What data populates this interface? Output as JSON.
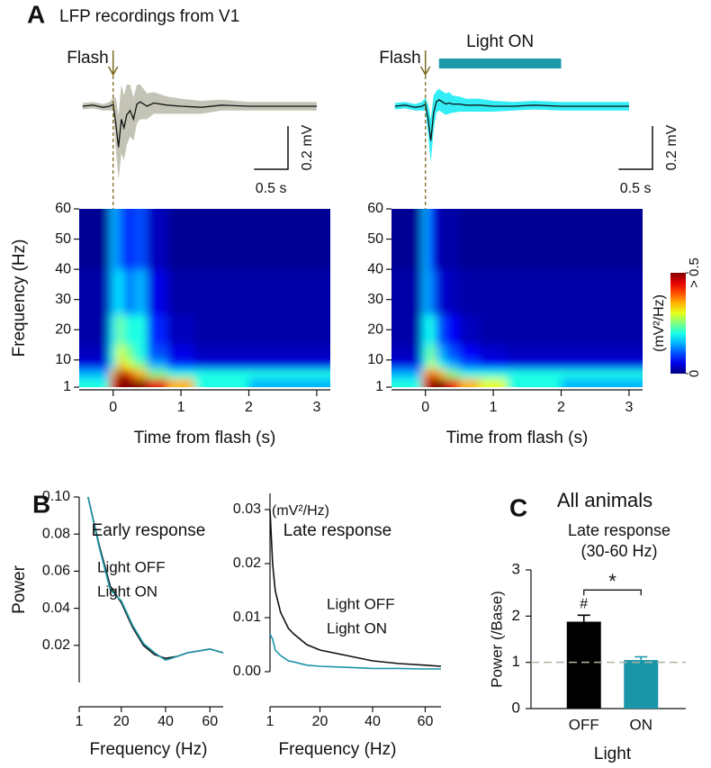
{
  "panel_labels": [
    "A",
    "B",
    "C"
  ],
  "title": "LFP recordings from V1",
  "chart_data": [
    {
      "type": "trace",
      "flash_label": "Flash",
      "flash_x": 0,
      "xlim": [
        -0.5,
        3.2
      ],
      "color": "#111111",
      "band_color": "#c4c4b6",
      "x": [
        -0.45,
        -0.3,
        -0.15,
        -0.05,
        0,
        0.04,
        0.08,
        0.12,
        0.16,
        0.2,
        0.25,
        0.3,
        0.35,
        0.4,
        0.5,
        0.6,
        0.8,
        1.0,
        1.3,
        1.6,
        2.0,
        2.5,
        3.0
      ],
      "mean": [
        0,
        0.005,
        -0.005,
        0,
        0.01,
        -0.08,
        -0.19,
        -0.06,
        -0.1,
        -0.04,
        -0.02,
        -0.06,
        0.01,
        0.02,
        0,
        0.015,
        0.005,
        0,
        -0.005,
        0.005,
        0,
        0,
        0
      ],
      "sd": [
        0.015,
        0.015,
        0.015,
        0.02,
        0.03,
        0.12,
        0.15,
        0.16,
        0.15,
        0.14,
        0.12,
        0.1,
        0.09,
        0.08,
        0.06,
        0.05,
        0.04,
        0.035,
        0.03,
        0.025,
        0.02,
        0.02,
        0.02
      ],
      "scalebar": {
        "x": 0.5,
        "y": 0.2,
        "x_label": "0.5 s",
        "y_label": "0.2 mV"
      }
    },
    {
      "type": "trace",
      "flash_label": "Flash",
      "flash_x": 0,
      "xlim": [
        -0.5,
        3.2
      ],
      "color": "#111111",
      "band_color": "#33eef6",
      "light_on": {
        "label": "Light ON",
        "start": 0.2,
        "end": 2.0,
        "color": "#1a9aaa"
      },
      "x": [
        -0.45,
        -0.3,
        -0.15,
        -0.05,
        0,
        0.04,
        0.08,
        0.12,
        0.16,
        0.2,
        0.25,
        0.3,
        0.35,
        0.4,
        0.5,
        0.6,
        0.8,
        1.0,
        1.3,
        1.6,
        2.0,
        2.5,
        3.0
      ],
      "mean": [
        0,
        0.005,
        -0.005,
        0,
        0.01,
        -0.06,
        -0.16,
        -0.03,
        0.02,
        0.03,
        0.02,
        0.01,
        0.015,
        0.01,
        0.01,
        0.005,
        0.005,
        0,
        0,
        0.005,
        0,
        0,
        0
      ],
      "sd": [
        0.015,
        0.015,
        0.015,
        0.02,
        0.03,
        0.07,
        0.1,
        0.08,
        0.05,
        0.05,
        0.05,
        0.05,
        0.05,
        0.04,
        0.035,
        0.03,
        0.03,
        0.025,
        0.02,
        0.02,
        0.02,
        0.02,
        0.02
      ],
      "scalebar": {
        "x": 0.5,
        "y": 0.2,
        "x_label": "0.5 s",
        "y_label": "0.2 mV"
      }
    },
    {
      "type": "heatmap",
      "ylabel": "Frequency (Hz)",
      "xlabel": "Time from flash (s)",
      "xlim": [
        -0.5,
        3.2
      ],
      "ylim": [
        1,
        60
      ],
      "xticks": [
        0,
        1,
        2,
        3
      ],
      "yticks": [
        1,
        10,
        20,
        30,
        40,
        50,
        60
      ],
      "zlim": [
        0,
        0.5
      ],
      "xbins": [
        -0.5,
        -0.05,
        0.05,
        0.15,
        0.3,
        0.5,
        0.8,
        1.2,
        2,
        3.2
      ],
      "ybins": [
        1,
        4,
        7,
        10,
        15,
        25,
        40,
        60
      ],
      "z": [
        [
          0.2,
          0.45,
          0.6,
          0.6,
          0.55,
          0.45,
          0.35,
          0.2,
          0.15
        ],
        [
          0.15,
          0.35,
          0.5,
          0.45,
          0.35,
          0.25,
          0.2,
          0.2,
          0.2
        ],
        [
          0.05,
          0.2,
          0.35,
          0.3,
          0.25,
          0.15,
          0.08,
          0.05,
          0.05
        ],
        [
          0.03,
          0.2,
          0.3,
          0.25,
          0.2,
          0.1,
          0.05,
          0.03,
          0.03
        ],
        [
          0.02,
          0.18,
          0.25,
          0.2,
          0.2,
          0.08,
          0.03,
          0.02,
          0.02
        ],
        [
          0.02,
          0.15,
          0.18,
          0.12,
          0.15,
          0.05,
          0.02,
          0.02,
          0.02
        ],
        [
          0.01,
          0.15,
          0.12,
          0.08,
          0.1,
          0.03,
          0.01,
          0.01,
          0.01
        ]
      ]
    },
    {
      "type": "heatmap",
      "xlabel": "Time from flash (s)",
      "xlim": [
        -0.5,
        3.2
      ],
      "ylim": [
        1,
        60
      ],
      "xticks": [
        0,
        1,
        2,
        3
      ],
      "yticks": [
        1,
        10,
        20,
        30,
        40,
        50,
        60
      ],
      "zlim": [
        0,
        0.5
      ],
      "xbins": [
        -0.5,
        -0.05,
        0.05,
        0.15,
        0.3,
        0.5,
        0.8,
        1.2,
        2,
        3.2
      ],
      "ybins": [
        1,
        4,
        7,
        10,
        15,
        25,
        40,
        60
      ],
      "z": [
        [
          0.2,
          0.45,
          0.6,
          0.55,
          0.45,
          0.35,
          0.3,
          0.2,
          0.15
        ],
        [
          0.15,
          0.35,
          0.45,
          0.35,
          0.25,
          0.2,
          0.2,
          0.2,
          0.2
        ],
        [
          0.05,
          0.2,
          0.3,
          0.2,
          0.15,
          0.1,
          0.06,
          0.05,
          0.05
        ],
        [
          0.03,
          0.2,
          0.25,
          0.15,
          0.1,
          0.06,
          0.04,
          0.03,
          0.03
        ],
        [
          0.02,
          0.18,
          0.2,
          0.1,
          0.06,
          0.03,
          0.02,
          0.02,
          0.02
        ],
        [
          0.02,
          0.15,
          0.12,
          0.04,
          0.03,
          0.02,
          0.02,
          0.02,
          0.02
        ],
        [
          0.01,
          0.15,
          0.08,
          0.02,
          0.02,
          0.01,
          0.01,
          0.01,
          0.01
        ]
      ],
      "colorbar": {
        "label": "(mV²/Hz)",
        "ticks": [
          {
            "value": 0.5,
            "label": "> 0.5"
          },
          0
        ]
      }
    },
    {
      "type": "line",
      "title": "Early response",
      "ylabel": "Power",
      "xlabel": "Frequency (Hz)",
      "xlim": [
        1,
        66
      ],
      "ylim": [
        0,
        0.1
      ],
      "xticks": [
        1,
        20,
        40,
        60
      ],
      "yticks": [
        0.02,
        0.04,
        0.06,
        0.08,
        {
          "value": 0.1,
          "label": "0.10"
        }
      ],
      "x": [
        5,
        10,
        15,
        20,
        25,
        30,
        35,
        40,
        45,
        50,
        55,
        60,
        66
      ],
      "series": [
        {
          "name": "Light OFF",
          "color": "#111111",
          "values": [
            0.1,
            0.074,
            0.052,
            0.043,
            0.03,
            0.02,
            0.015,
            0.013,
            0.014,
            0.016,
            0.017,
            0.018,
            0.016
          ]
        },
        {
          "name": "Light ON",
          "color": "#1b95a8",
          "values": [
            0.1,
            0.073,
            0.05,
            0.044,
            0.031,
            0.021,
            0.016,
            0.012,
            0.014,
            0.016,
            0.017,
            0.018,
            0.016
          ]
        }
      ]
    },
    {
      "type": "line",
      "title": "Late response",
      "unit_label": "(mV²/Hz)",
      "xlabel": "Frequency (Hz)",
      "xlim": [
        1,
        66
      ],
      "ylim": [
        0,
        0.033
      ],
      "xticks": [
        1,
        20,
        40,
        60
      ],
      "yticks": [
        {
          "value": 0,
          "label": "0.00"
        },
        0.01,
        0.02,
        0.03
      ],
      "x": [
        1,
        2,
        3,
        5,
        8,
        10,
        15,
        20,
        30,
        40,
        50,
        60,
        66
      ],
      "series": [
        {
          "name": "Light OFF",
          "color": "#111111",
          "values": [
            0.03,
            0.02,
            0.015,
            0.011,
            0.008,
            0.007,
            0.005,
            0.004,
            0.003,
            0.002,
            0.0015,
            0.0012,
            0.001
          ]
        },
        {
          "name": "Light ON",
          "color": "#1b95a8",
          "values": [
            0.007,
            0.006,
            0.004,
            0.003,
            0.002,
            0.0018,
            0.0012,
            0.001,
            0.0008,
            0.0006,
            0.0006,
            0.0005,
            0.0005
          ]
        }
      ]
    },
    {
      "type": "bar",
      "title": "All animals",
      "subtitle": [
        "Late response",
        "(30-60 Hz)"
      ],
      "ylabel": "Power (/Base)",
      "xlabel": "Light",
      "categories": [
        "OFF",
        "ON"
      ],
      "values": [
        1.88,
        1.05
      ],
      "errors": [
        0.14,
        0.07
      ],
      "colors": [
        "#000000",
        "#1b95a8"
      ],
      "bar_labels": [
        "#",
        null
      ],
      "significance": "*",
      "reference_line": 1,
      "ylim": [
        0,
        3
      ],
      "yticks": [
        0,
        1,
        2,
        3
      ]
    }
  ]
}
